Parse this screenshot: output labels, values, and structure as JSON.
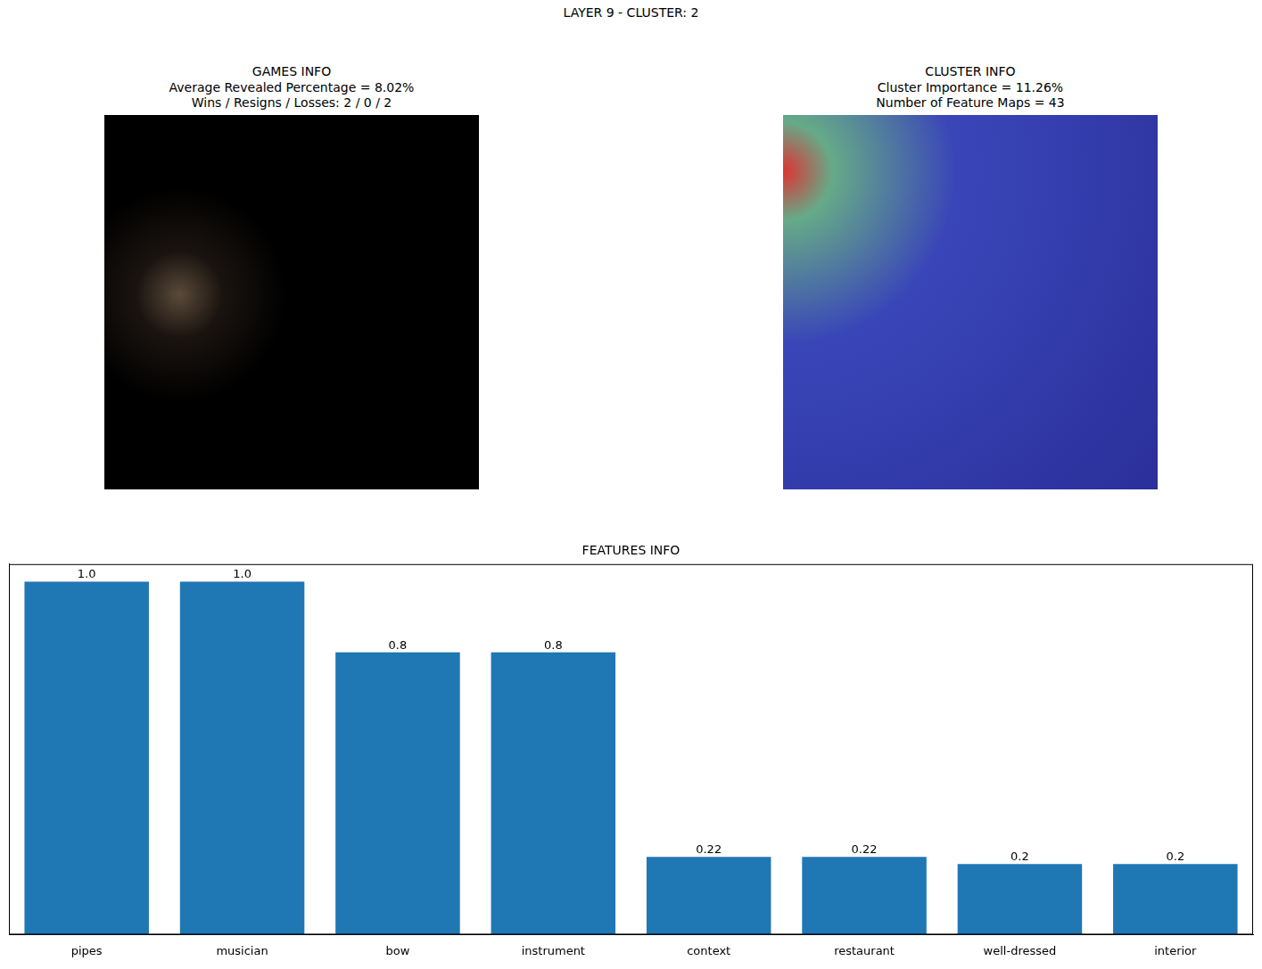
{
  "title": "LAYER 9 - CLUSTER: 2",
  "panels": [
    {
      "title": [
        "GAMES INFO",
        "Average Revealed Percentage = 8.02%",
        "Wins / Resigns / Losses: 2 / 0 / 2"
      ]
    },
    {
      "title": [
        "CLUSTER INFO",
        "Cluster Importance = 11.26%",
        "Number of Feature Maps = 43"
      ]
    }
  ],
  "chart_data": {
    "type": "bar",
    "title": "FEATURES INFO",
    "categories": [
      "pipes",
      "musician",
      "bow",
      "instrument",
      "context",
      "restaurant",
      "well-dressed",
      "interior"
    ],
    "values": [
      1.0,
      1.0,
      0.8,
      0.8,
      0.22,
      0.22,
      0.2,
      0.2
    ],
    "value_labels": [
      "1.0",
      "1.0",
      "0.8",
      "0.8",
      "0.22",
      "0.22",
      "0.2",
      "0.2"
    ],
    "color": "#1f77b4",
    "ylim": [
      0,
      1.05
    ],
    "grid": false,
    "data_labels": true,
    "tick_labels": "x"
  }
}
